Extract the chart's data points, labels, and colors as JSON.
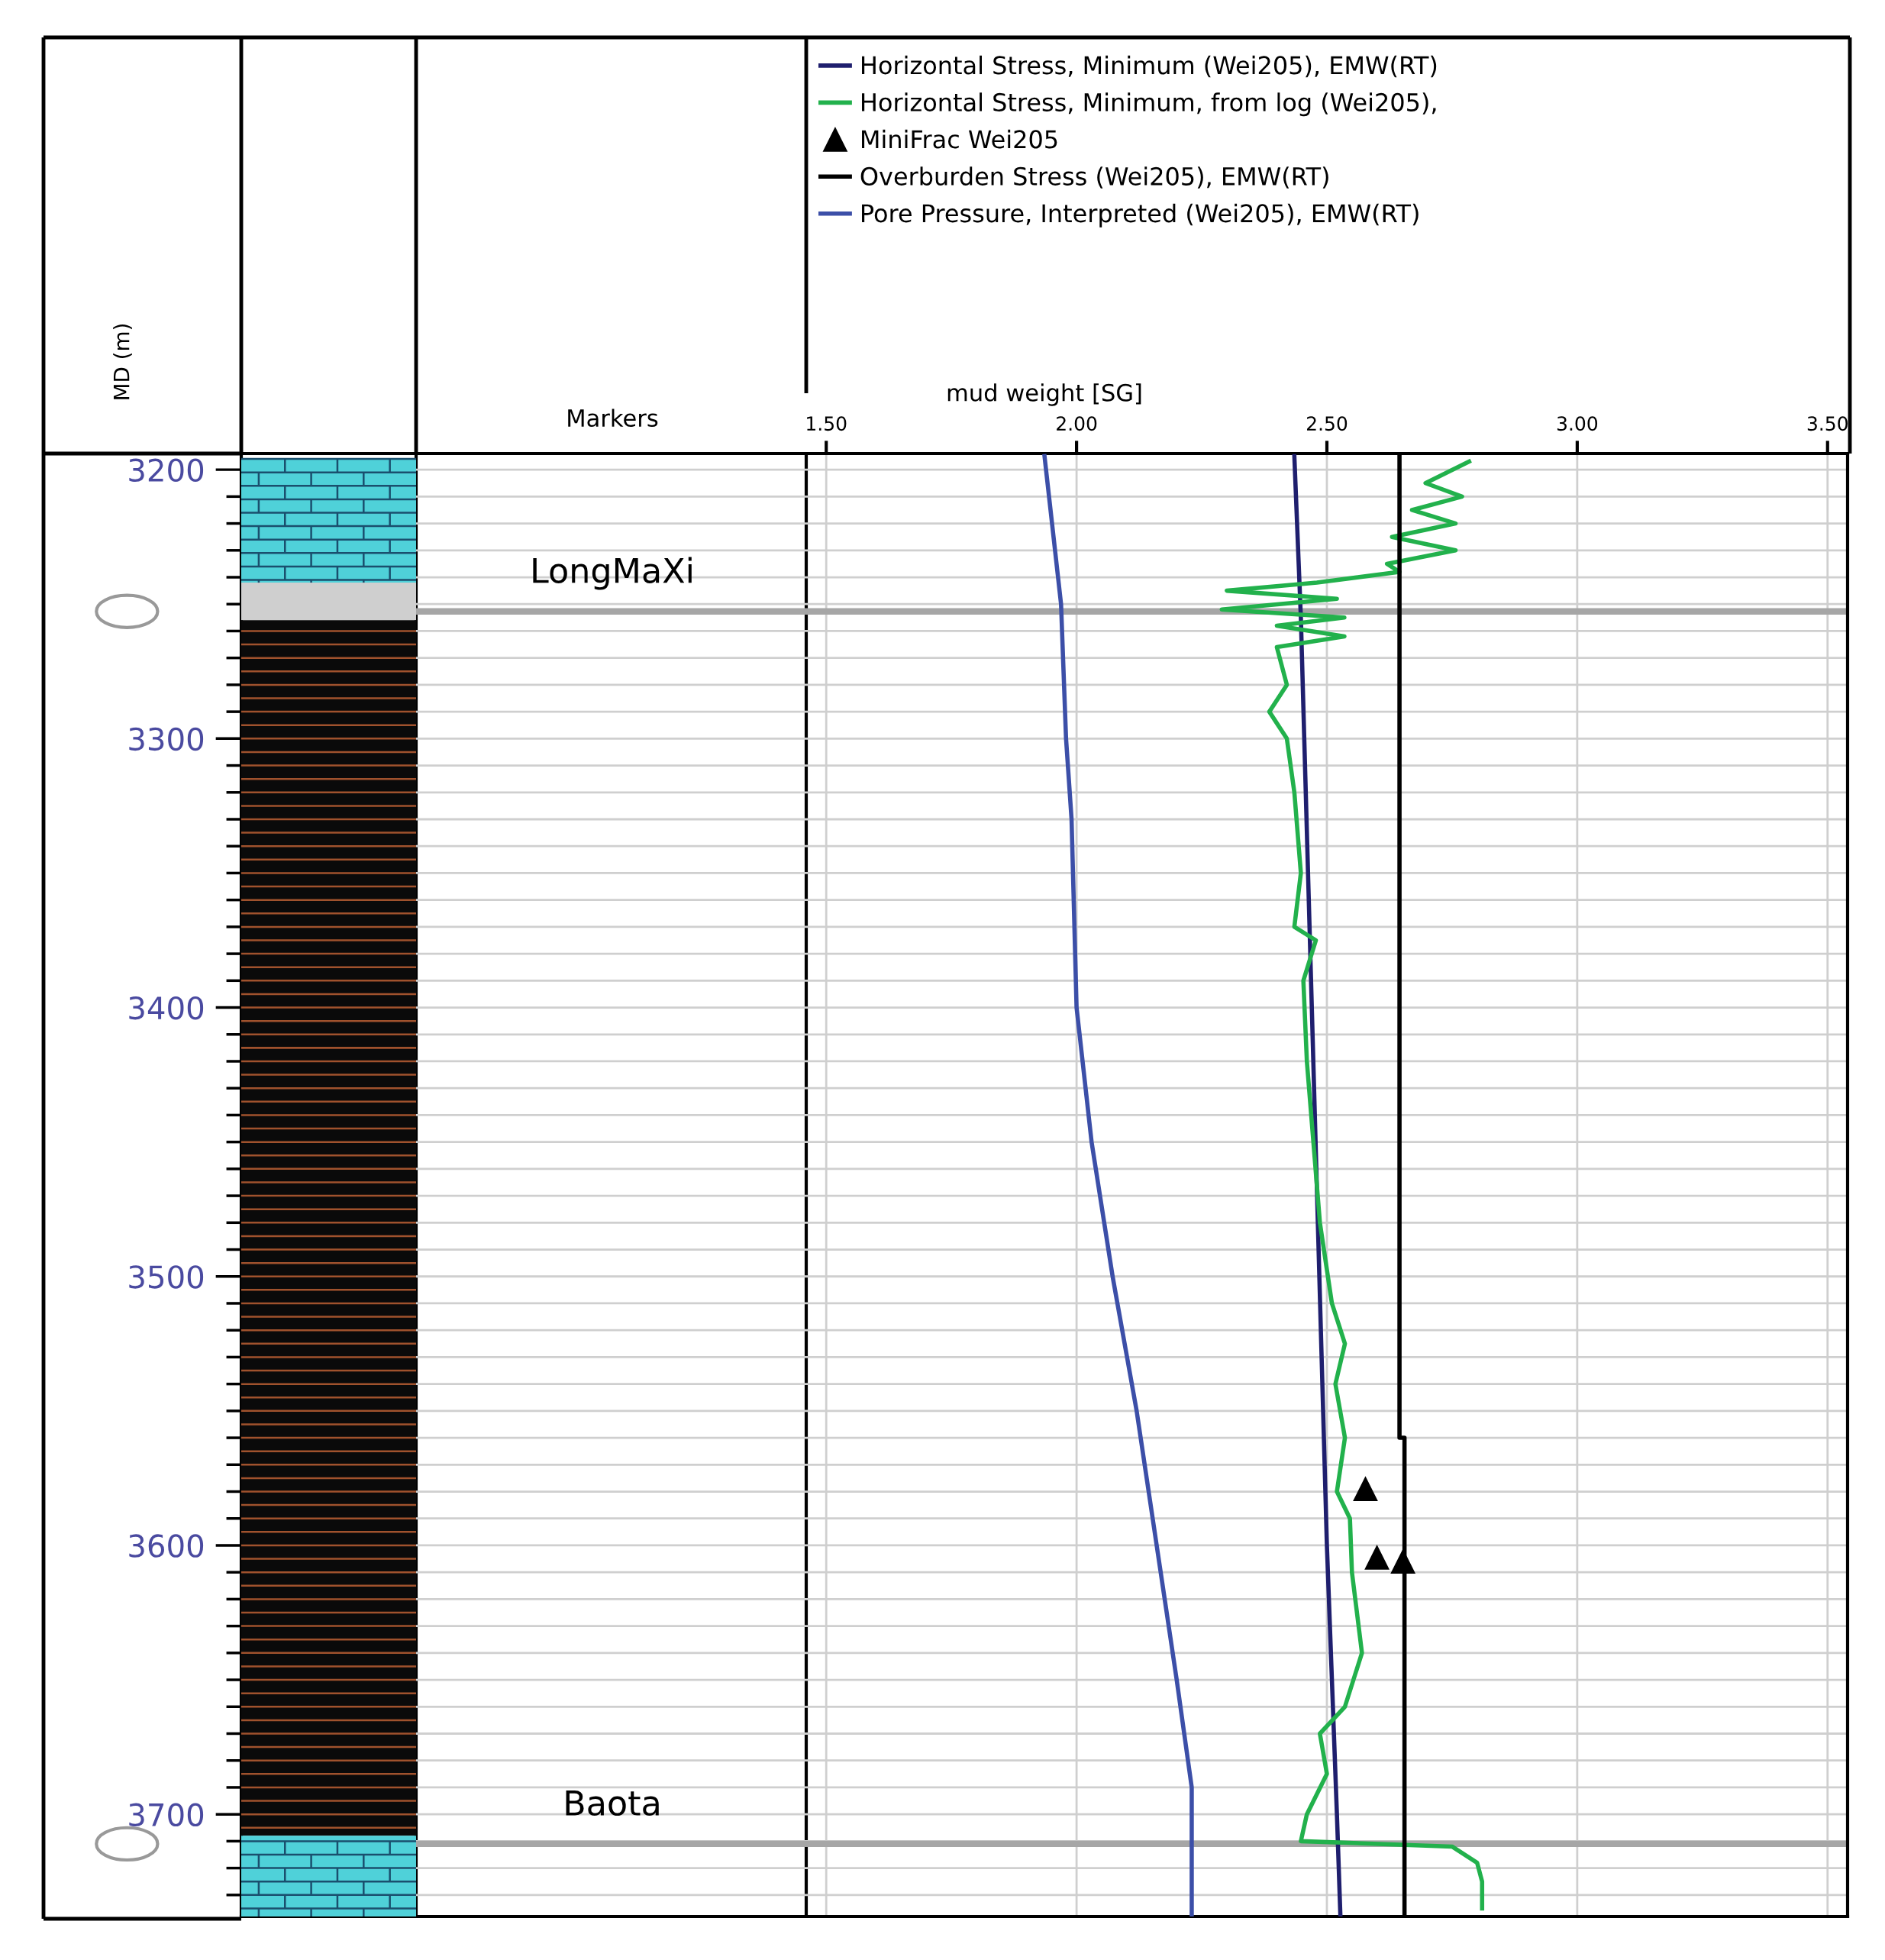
{
  "chart_data": {
    "type": "line",
    "xlabel": "mud weight [SG]",
    "ylabel": "MD (m)",
    "xlim": [
      0.3316,
      3.54
    ],
    "xticks": [
      {
        "value": 1.5,
        "label": "1.50"
      },
      {
        "value": 2.0,
        "label": "2.00"
      },
      {
        "value": 2.5,
        "label": "2.50"
      },
      {
        "value": 3.0,
        "label": "3.00"
      },
      {
        "value": 3.5,
        "label": "3.50"
      }
    ],
    "ylim": [
      3738,
      3194
    ],
    "yticks": [
      3200,
      {
        "value": 3210,
        "label": null
      },
      {
        "value": 3220,
        "label": null
      },
      {
        "value": 3230,
        "label": null
      },
      {
        "value": 3240,
        "label": null
      },
      {
        "value": 3250,
        "label": null
      },
      {
        "value": 3260,
        "label": null
      },
      {
        "value": 3270,
        "label": null
      },
      {
        "value": 3280,
        "label": null
      },
      {
        "value": 3290,
        "label": null
      },
      3300,
      {
        "value": 3310,
        "label": null
      },
      {
        "value": 3320,
        "label": null
      },
      {
        "value": 3330,
        "label": null
      },
      {
        "value": 3340,
        "label": null
      },
      {
        "value": 3350,
        "label": null
      },
      {
        "value": 3360,
        "label": null
      },
      {
        "value": 3370,
        "label": null
      },
      {
        "value": 3380,
        "label": null
      },
      {
        "value": 3390,
        "label": null
      },
      3400,
      {
        "value": 3410,
        "label": null
      },
      {
        "value": 3420,
        "label": null
      },
      {
        "value": 3430,
        "label": null
      },
      {
        "value": 3440,
        "label": null
      },
      {
        "value": 3450,
        "label": null
      },
      {
        "value": 3460,
        "label": null
      },
      {
        "value": 3470,
        "label": null
      },
      {
        "value": 3480,
        "label": null
      },
      {
        "value": 3490,
        "label": null
      },
      3500,
      {
        "value": 3510,
        "label": null
      },
      {
        "value": 3520,
        "label": null
      },
      {
        "value": 3530,
        "label": null
      },
      {
        "value": 3540,
        "label": null
      },
      {
        "value": 3550,
        "label": null
      },
      {
        "value": 3560,
        "label": null
      },
      {
        "value": 3570,
        "label": null
      },
      {
        "value": 3580,
        "label": null
      },
      {
        "value": 3590,
        "label": null
      },
      3600,
      {
        "value": 3610,
        "label": null
      },
      {
        "value": 3620,
        "label": null
      },
      {
        "value": 3630,
        "label": null
      },
      {
        "value": 3640,
        "label": null
      },
      {
        "value": 3650,
        "label": null
      },
      {
        "value": 3660,
        "label": null
      },
      {
        "value": 3670,
        "label": null
      },
      {
        "value": 3680,
        "label": null
      },
      {
        "value": 3690,
        "label": null
      },
      3700,
      {
        "value": 3710,
        "label": null
      },
      {
        "value": 3720,
        "label": null
      },
      {
        "value": 3730,
        "label": null
      }
    ],
    "grid": true,
    "legend": "top",
    "annotations": [
      "Markers"
    ],
    "ref_lines": [
      {
        "axis": "y",
        "value": 3252.7,
        "label": "LongMaXi",
        "color": "#a6a6a6"
      },
      {
        "axis": "y",
        "value": 3711,
        "label": "Baota",
        "color": "#a6a6a6"
      }
    ],
    "series": [
      {
        "name": "Horizontal Stress, Minimum (Wei205), EMW(RT)",
        "color": "#1f1f6e",
        "x": [
          2.435,
          2.448,
          2.5,
          2.52,
          2.527
        ],
        "values": [
          3195,
          3255,
          3600,
          3700,
          3738
        ]
      },
      {
        "name": "Horizontal Stress, Minimum, from log (Wei205),",
        "color": "#22b14c",
        "x": [
          2.784,
          2.697,
          2.77,
          2.67,
          2.757,
          2.63,
          2.757,
          2.62,
          2.645,
          2.48,
          2.3,
          2.52,
          2.29,
          2.535,
          2.4,
          2.535,
          2.4,
          2.42,
          2.385,
          2.42,
          2.435,
          2.448,
          2.435,
          2.478,
          2.453,
          2.46,
          2.473,
          2.486,
          2.51,
          2.536,
          2.517,
          2.536,
          2.52,
          2.546,
          2.55,
          2.57,
          2.536,
          2.486,
          2.5,
          2.46,
          2.448,
          2.75,
          2.8,
          2.81,
          2.81
        ],
        "values": [
          3197,
          3205,
          3210,
          3215,
          3220,
          3225,
          3230,
          3235,
          3238,
          3242,
          3245,
          3248,
          3252,
          3255,
          3258,
          3262,
          3266,
          3280,
          3290,
          3300,
          3320,
          3350,
          3370,
          3375,
          3390,
          3420,
          3450,
          3480,
          3510,
          3525,
          3540,
          3560,
          3580,
          3590,
          3610,
          3640,
          3660,
          3670,
          3685,
          3700,
          3710,
          3712,
          3718,
          3725,
          3735
        ]
      },
      {
        "name": "MiniFrac Wei205",
        "color": "#000000",
        "type": "scatter",
        "marker": "triangle",
        "x": [
          2.577,
          2.6,
          2.652
        ],
        "values": [
          3579,
          3604.5,
          3606
        ]
      },
      {
        "name": "Overburden Stress (Wei205), EMW(RT)",
        "color": "#000000",
        "x": [
          2.645,
          2.645,
          2.655,
          2.655
        ],
        "values": [
          3195,
          3560,
          3560,
          3738
        ]
      },
      {
        "name": "Pore Pressure, Interpreted (Wei205), EMW(RT)",
        "color": "#3c4fa8",
        "x": [
          1.936,
          1.969,
          1.979,
          1.99,
          2.0,
          2.03,
          2.072,
          2.12,
          2.16,
          2.2,
          2.23,
          2.23
        ],
        "values": [
          3195,
          3250,
          3300,
          3330,
          3400,
          3450,
          3500,
          3550,
          3600,
          3650,
          3690,
          3738
        ]
      }
    ]
  }
}
